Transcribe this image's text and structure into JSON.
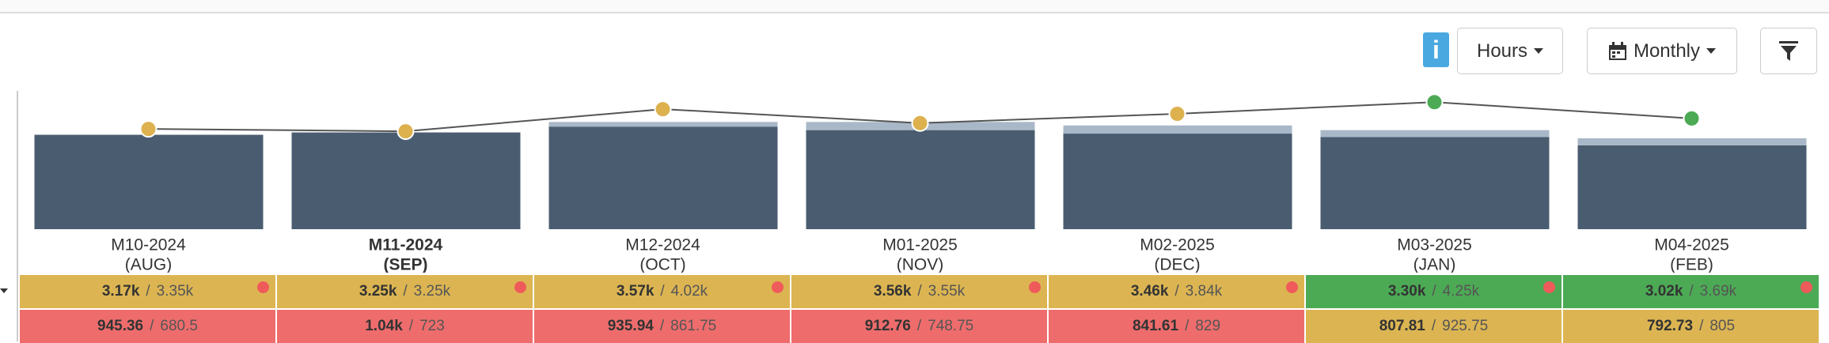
{
  "toolbar": {
    "info": "i",
    "units": "Hours",
    "period": "Monthly"
  },
  "chart_data": {
    "type": "bar",
    "categories": [
      "M10-2024",
      "M11-2024",
      "M12-2024",
      "M01-2025",
      "M02-2025",
      "M03-2025",
      "M04-2025"
    ],
    "sublabels": [
      "(AUG)",
      "(SEP)",
      "(OCT)",
      "(NOV)",
      "(DEC)",
      "(JAN)",
      "(FEB)"
    ],
    "selected": 1,
    "ylim": [
      0,
      120
    ],
    "series": [
      {
        "color": "#4a5d70",
        "values": [
          81,
          83,
          88,
          85,
          82,
          79,
          72
        ]
      },
      {
        "color": "#a9b8c8",
        "values": [
          0,
          0,
          4,
          7,
          7,
          6,
          6
        ]
      },
      {
        "type": "line",
        "color": "#555555",
        "values": [
          86,
          84,
          103,
          91,
          99,
          109,
          95
        ],
        "point_colors": [
          "#dcb14e",
          "#dcb14e",
          "#dcb14e",
          "#dcb14e",
          "#dcb14e",
          "#4caa55",
          "#4caa55"
        ]
      }
    ]
  },
  "table": {
    "separator": "/",
    "rows": [
      {
        "alert": true,
        "cells": [
          {
            "main": "3.17k",
            "target": "3.35k",
            "color": "#dcb552"
          },
          {
            "main": "3.25k",
            "target": "3.25k",
            "color": "#dcb552"
          },
          {
            "main": "3.57k",
            "target": "4.02k",
            "color": "#dcb552"
          },
          {
            "main": "3.56k",
            "target": "3.55k",
            "color": "#dcb552"
          },
          {
            "main": "3.46k",
            "target": "3.84k",
            "color": "#dcb552"
          },
          {
            "main": "3.30k",
            "target": "4.25k",
            "color": "#4caa55"
          },
          {
            "main": "3.02k",
            "target": "3.69k",
            "color": "#4caa55"
          }
        ]
      },
      {
        "alert": false,
        "cells": [
          {
            "main": "945.36",
            "target": "680.5",
            "color": "#ef6c6c"
          },
          {
            "main": "1.04k",
            "target": "723",
            "color": "#ef6c6c"
          },
          {
            "main": "935.94",
            "target": "861.75",
            "color": "#ef6c6c"
          },
          {
            "main": "912.76",
            "target": "748.75",
            "color": "#ef6c6c"
          },
          {
            "main": "841.61",
            "target": "829",
            "color": "#ef6c6c"
          },
          {
            "main": "807.81",
            "target": "925.75",
            "color": "#dcb552"
          },
          {
            "main": "792.73",
            "target": "805",
            "color": "#dcb552"
          }
        ]
      }
    ]
  }
}
